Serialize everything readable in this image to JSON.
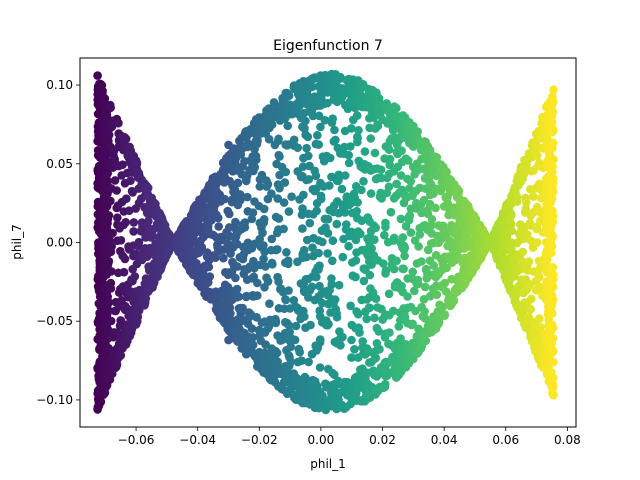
{
  "chart_data": {
    "type": "scatter",
    "title": "Eigenfunction 7",
    "xlabel": "phil_1",
    "ylabel": "phil_7",
    "xlim": [
      -0.0782,
      0.0828
    ],
    "ylim": [
      -0.1172,
      0.1172
    ],
    "xticks": [
      -0.06,
      -0.04,
      -0.02,
      0.0,
      0.02,
      0.04,
      0.06,
      0.08
    ],
    "xtick_labels": [
      "−0.06",
      "−0.04",
      "−0.02",
      "0.00",
      "0.02",
      "0.04",
      "0.06",
      "0.08"
    ],
    "yticks": [
      -0.1,
      -0.05,
      0.0,
      0.05,
      0.1
    ],
    "ytick_labels": [
      "−0.10",
      "−0.05",
      "0.00",
      "0.05",
      "0.10"
    ],
    "colormap": "viridis",
    "color_encoding": "phil_1",
    "grid": false,
    "legend": "none",
    "shape": {
      "x_range": [
        -0.0725,
        0.0755
      ],
      "nodes_x": [
        -0.048,
        0.055
      ],
      "left_lobe": {
        "x": [
          -0.0725,
          -0.048
        ],
        "peak_abs_y": 0.106
      },
      "center_lobe": {
        "x": [
          -0.048,
          0.055
        ],
        "peak_x": 0.0035,
        "peak_abs_y": 0.107
      },
      "right_lobe": {
        "x": [
          0.055,
          0.0755
        ],
        "peak_abs_y": 0.097
      }
    },
    "sample_points": [
      {
        "x": -0.0725,
        "y": 0.106
      },
      {
        "x": -0.0725,
        "y": -0.106
      },
      {
        "x": -0.06,
        "y": 0.052
      },
      {
        "x": -0.06,
        "y": -0.052
      },
      {
        "x": -0.048,
        "y": 0.0
      },
      {
        "x": -0.03,
        "y": 0.062
      },
      {
        "x": -0.03,
        "y": -0.062
      },
      {
        "x": 0.0035,
        "y": 0.107
      },
      {
        "x": 0.0035,
        "y": -0.104
      },
      {
        "x": 0.03,
        "y": 0.074
      },
      {
        "x": 0.03,
        "y": -0.074
      },
      {
        "x": 0.055,
        "y": 0.0
      },
      {
        "x": 0.065,
        "y": 0.048
      },
      {
        "x": 0.065,
        "y": -0.048
      },
      {
        "x": 0.0755,
        "y": 0.097
      },
      {
        "x": 0.0755,
        "y": -0.097
      }
    ]
  }
}
